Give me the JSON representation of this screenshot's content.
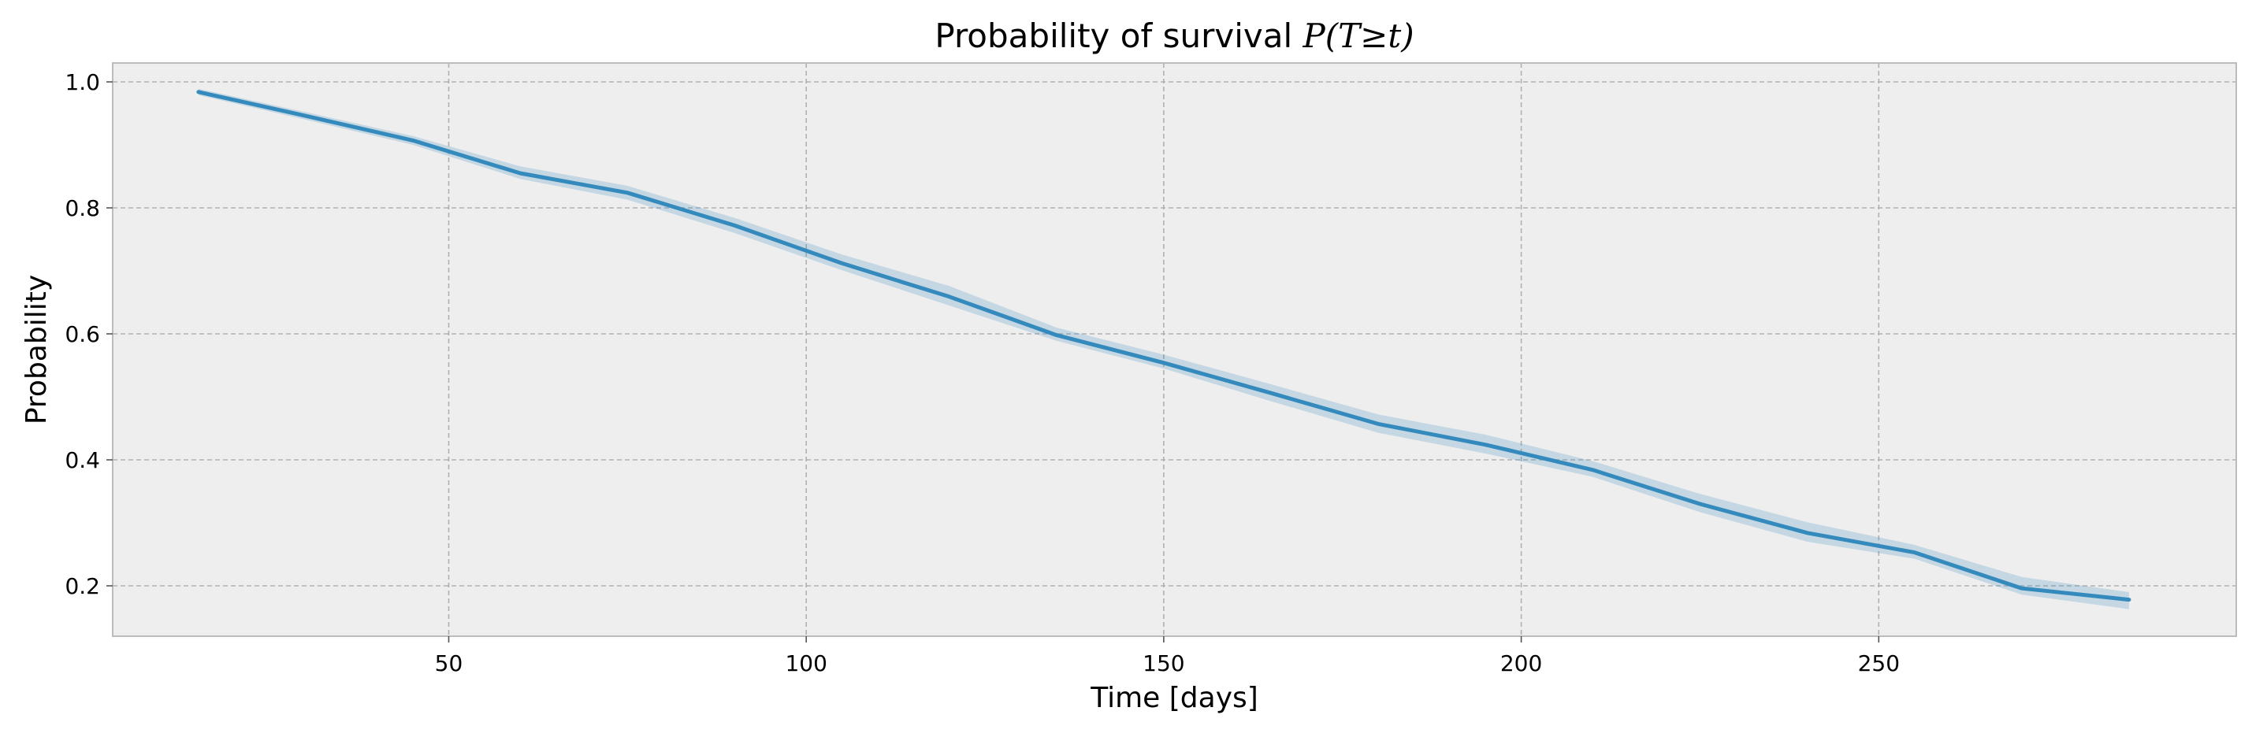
{
  "chart_data": {
    "type": "line",
    "title_prefix": "Probability of survival ",
    "title_math": "P(T≥t)",
    "xlabel": "Time [days]",
    "ylabel": "Probability",
    "xlim": [
      3,
      300
    ],
    "ylim": [
      0.12,
      1.03
    ],
    "xticks": [
      50,
      100,
      150,
      200,
      250
    ],
    "yticks": [
      0.2,
      0.4,
      0.6,
      0.8,
      1.0
    ],
    "grid": true,
    "background_color": "#eeeeee",
    "line_color": "#348abd",
    "band_color": "#348abd",
    "series": [
      {
        "x": [
          15,
          30,
          45,
          60,
          75,
          90,
          105,
          120,
          135,
          150,
          165,
          180,
          195,
          210,
          225,
          240,
          255,
          270,
          285
        ],
        "y": [
          0.984,
          0.946,
          0.907,
          0.855,
          0.824,
          0.772,
          0.712,
          0.659,
          0.598,
          0.554,
          0.506,
          0.457,
          0.424,
          0.384,
          0.33,
          0.284,
          0.253,
          0.196,
          0.178
        ],
        "lower": [
          0.979,
          0.94,
          0.9,
          0.846,
          0.813,
          0.76,
          0.701,
          0.645,
          0.589,
          0.545,
          0.493,
          0.443,
          0.41,
          0.373,
          0.317,
          0.27,
          0.243,
          0.186,
          0.163
        ],
        "upper": [
          0.989,
          0.952,
          0.914,
          0.866,
          0.835,
          0.784,
          0.726,
          0.676,
          0.61,
          0.567,
          0.52,
          0.472,
          0.44,
          0.398,
          0.346,
          0.301,
          0.265,
          0.214,
          0.19
        ]
      }
    ]
  }
}
